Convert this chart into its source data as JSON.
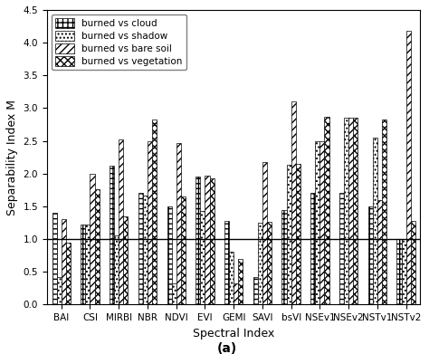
{
  "categories": [
    "BAI",
    "CSI",
    "MIRBI",
    "NBR",
    "NDVI",
    "EVI",
    "GEMI",
    "SAVI",
    "bsVI",
    "NSEv1",
    "NSEv2",
    "NSTv1",
    "NSTv2"
  ],
  "series": {
    "burned vs cloud": [
      1.4,
      1.22,
      2.12,
      1.7,
      1.5,
      1.95,
      1.27,
      0.42,
      1.44,
      1.7,
      1.7,
      1.5,
      1.0
    ],
    "burned vs shadow": [
      0.42,
      1.22,
      1.05,
      1.67,
      0.32,
      1.43,
      0.8,
      1.25,
      2.13,
      2.5,
      2.85,
      2.55,
      1.0
    ],
    "burned vs bare soil": [
      1.3,
      2.0,
      2.52,
      2.5,
      2.47,
      1.97,
      0.32,
      2.17,
      3.1,
      2.5,
      2.85,
      1.6,
      4.18
    ],
    "burned vs vegetation": [
      0.95,
      1.76,
      1.35,
      2.83,
      1.65,
      1.92,
      0.7,
      1.26,
      2.15,
      2.87,
      2.85,
      2.82,
      1.28
    ]
  },
  "hatch_patterns": [
    "+++",
    "....",
    "////",
    "xxxx"
  ],
  "bar_edgecolor": "#000000",
  "bar_facecolor": "#ffffff",
  "ylabel": "Separability Index M",
  "xlabel": "Spectral Index",
  "subtitle": "(a)",
  "ylim": [
    0.0,
    4.5
  ],
  "yticks": [
    0.0,
    0.5,
    1.0,
    1.5,
    2.0,
    2.5,
    3.0,
    3.5,
    4.0,
    4.5
  ],
  "hline_y": 1.0,
  "legend_loc": "upper left",
  "axis_fontsize": 9,
  "tick_fontsize": 7.5,
  "legend_fontsize": 7.5,
  "subtitle_fontsize": 10
}
